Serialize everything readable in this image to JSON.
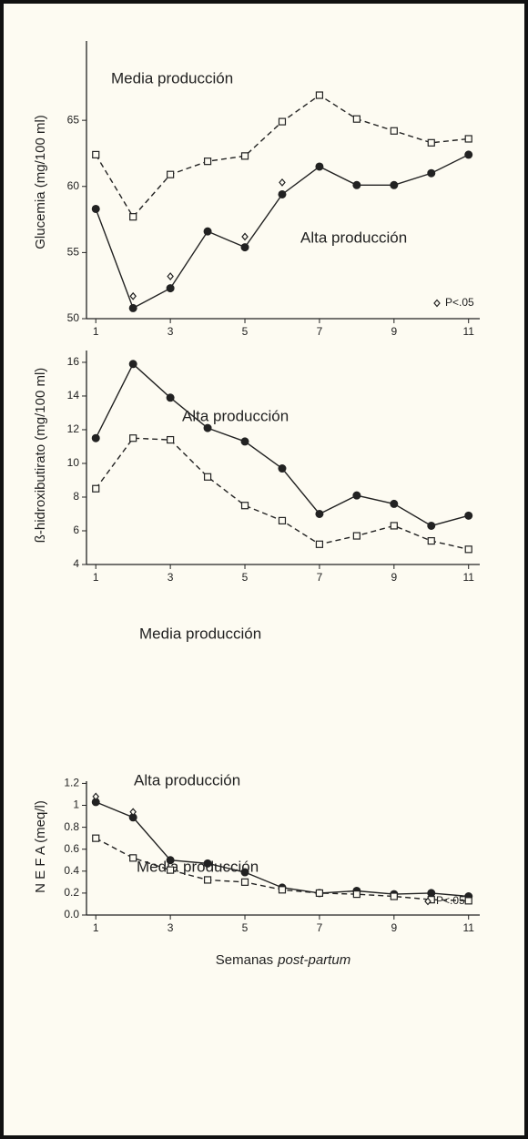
{
  "chart_data": [
    {
      "type": "line",
      "ylabel": "Glucemia (mg/100 ml)",
      "x": [
        1,
        2,
        3,
        4,
        5,
        6,
        7,
        8,
        9,
        10,
        11
      ],
      "xlim": [
        0.75,
        11.3
      ],
      "xticks": [
        1,
        3,
        5,
        7,
        9,
        11
      ],
      "ylim": [
        50,
        71
      ],
      "yticks": [
        50,
        55,
        60,
        65
      ],
      "series": [
        {
          "name": "Media producción",
          "color": "#222",
          "dashed": true,
          "marker": "square",
          "values": [
            62.4,
            57.7,
            60.9,
            61.9,
            62.3,
            64.9,
            66.9,
            65.1,
            64.2,
            63.3,
            63.6
          ]
        },
        {
          "name": "Alta producción",
          "color": "#222",
          "dashed": false,
          "marker": "circle",
          "values": [
            58.3,
            50.8,
            52.3,
            56.6,
            55.4,
            59.4,
            61.5,
            60.1,
            60.1,
            61.0,
            62.4
          ]
        },
        {
          "name": "P<.05",
          "color": "#222",
          "marker": "diamond",
          "style": "markers",
          "values": [
            null,
            51.7,
            53.2,
            null,
            56.2,
            60.3,
            null,
            null,
            null,
            null,
            null
          ]
        }
      ],
      "legend": true
    },
    {
      "type": "line",
      "ylabel": "ß-hidroxibutirato (mg/100 ml)",
      "x": [
        1,
        2,
        3,
        4,
        5,
        6,
        7,
        8,
        9,
        10,
        11
      ],
      "xlim": [
        0.75,
        11.3
      ],
      "xticks": [
        1,
        3,
        5,
        7,
        9,
        11
      ],
      "ylim": [
        4,
        16.7
      ],
      "yticks": [
        4,
        6,
        8,
        10,
        12,
        14,
        16
      ],
      "series": [
        {
          "name": "Alta producción",
          "color": "#222",
          "dashed": false,
          "marker": "circle",
          "values": [
            11.5,
            15.9,
            13.9,
            12.1,
            11.3,
            9.7,
            7.0,
            8.1,
            7.6,
            6.3,
            6.9
          ]
        },
        {
          "name": "Media producción",
          "color": "#222",
          "dashed": true,
          "marker": "square",
          "values": [
            8.5,
            11.5,
            11.4,
            9.2,
            7.5,
            6.6,
            5.2,
            5.7,
            6.3,
            5.4,
            4.9
          ]
        }
      ],
      "legend": false
    },
    {
      "type": "line",
      "ylabel": "N E F A  (meq/l)",
      "xlabel": [
        "Semanas",
        "post-partum"
      ],
      "x": [
        1,
        2,
        3,
        4,
        5,
        6,
        7,
        8,
        9,
        10,
        11
      ],
      "xlim": [
        0.75,
        11.3
      ],
      "xticks": [
        1,
        3,
        5,
        7,
        9,
        11
      ],
      "ylim": [
        0,
        1.22
      ],
      "yticks": [
        {
          "value": 0,
          "label": "0.0"
        },
        0.2,
        0.4,
        0.6,
        0.8,
        1.0,
        1.2
      ],
      "series": [
        {
          "name": "Alta producción",
          "color": "#222",
          "dashed": false,
          "marker": "circle",
          "values": [
            1.03,
            0.89,
            0.5,
            0.47,
            0.39,
            0.25,
            0.2,
            0.22,
            0.19,
            0.2,
            0.17
          ]
        },
        {
          "name": "Media producción",
          "color": "#222",
          "dashed": true,
          "marker": "square",
          "values": [
            0.7,
            0.52,
            0.41,
            0.32,
            0.3,
            0.23,
            0.2,
            0.19,
            0.17,
            0.14,
            0.13
          ]
        },
        {
          "name": "P<.05",
          "color": "#222",
          "marker": "diamond",
          "style": "markers",
          "values": [
            1.08,
            0.94,
            null,
            null,
            null,
            null,
            null,
            null,
            null,
            null,
            null
          ]
        }
      ],
      "legend": true
    }
  ]
}
